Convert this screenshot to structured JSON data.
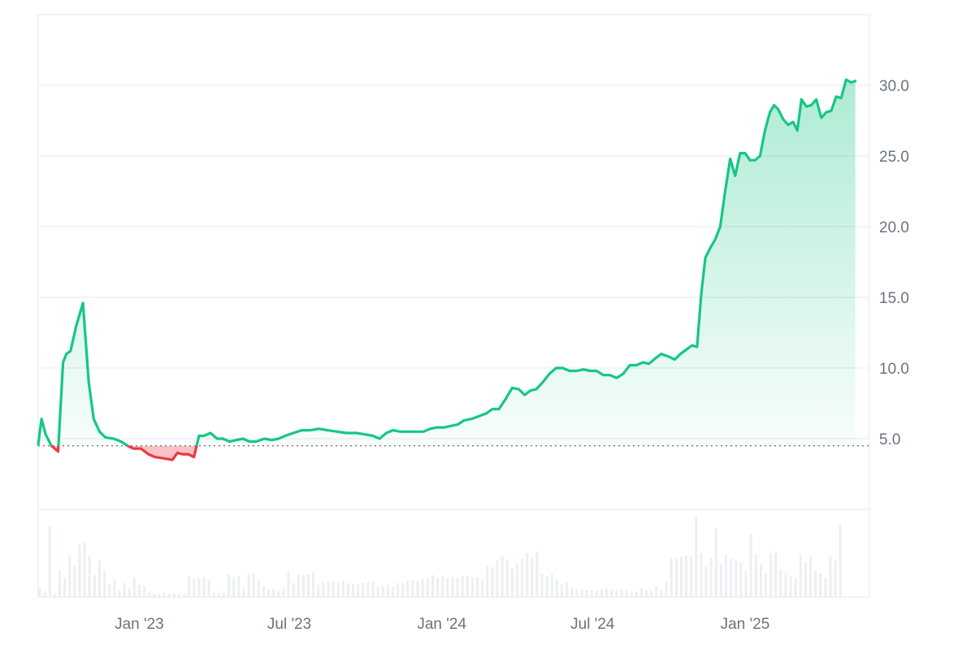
{
  "chart_data": {
    "type": "area",
    "baseline": 4.5,
    "y_axis": {
      "ticks": [
        5.0,
        10.0,
        15.0,
        20.0,
        25.0,
        30.0
      ],
      "tick_labels": [
        "5.0",
        "10.0",
        "15.0",
        "20.0",
        "25.0",
        "30.0"
      ],
      "ylim": [
        0,
        35
      ],
      "position": "right"
    },
    "x_axis": {
      "tick_labels": [
        "Jan '23",
        "Jul '23",
        "Jan '24",
        "Jul '24",
        "Jan '25"
      ],
      "xlim": [
        "2022-09-01",
        "2025-05-31"
      ]
    },
    "grid": true,
    "colors": {
      "up": "#16c784",
      "down": "#ea3943",
      "grid": "#eef0f3",
      "volume": "#eceff3"
    },
    "series": [
      {
        "values": [
          [
            "2022-09-01",
            4.6
          ],
          [
            "2022-09-05",
            6.4
          ],
          [
            "2022-09-10",
            5.3
          ],
          [
            "2022-09-17",
            4.5
          ],
          [
            "2022-09-25",
            4.1
          ],
          [
            "2022-10-01",
            10.4
          ],
          [
            "2022-10-05",
            11.0
          ],
          [
            "2022-10-10",
            11.2
          ],
          [
            "2022-10-17",
            13.0
          ],
          [
            "2022-10-25",
            14.6
          ],
          [
            "2022-11-01",
            9.0
          ],
          [
            "2022-11-07",
            6.4
          ],
          [
            "2022-11-14",
            5.5
          ],
          [
            "2022-11-21",
            5.1
          ],
          [
            "2022-12-01",
            5.0
          ],
          [
            "2022-12-10",
            4.8
          ],
          [
            "2022-12-18",
            4.5
          ],
          [
            "2022-12-25",
            4.3
          ],
          [
            "2023-01-03",
            4.3
          ],
          [
            "2023-01-12",
            3.9
          ],
          [
            "2023-01-20",
            3.7
          ],
          [
            "2023-02-01",
            3.6
          ],
          [
            "2023-02-10",
            3.5
          ],
          [
            "2023-02-16",
            4.0
          ],
          [
            "2023-02-22",
            3.9
          ],
          [
            "2023-03-01",
            3.9
          ],
          [
            "2023-03-08",
            3.7
          ],
          [
            "2023-03-14",
            5.2
          ],
          [
            "2023-03-20",
            5.2
          ],
          [
            "2023-03-28",
            5.4
          ],
          [
            "2023-04-05",
            5.0
          ],
          [
            "2023-04-12",
            5.0
          ],
          [
            "2023-04-20",
            4.8
          ],
          [
            "2023-04-28",
            4.9
          ],
          [
            "2023-05-06",
            5.0
          ],
          [
            "2023-05-14",
            4.8
          ],
          [
            "2023-05-22",
            4.8
          ],
          [
            "2023-06-01",
            5.0
          ],
          [
            "2023-06-10",
            4.9
          ],
          [
            "2023-06-18",
            5.0
          ],
          [
            "2023-06-26",
            5.2
          ],
          [
            "2023-07-06",
            5.4
          ],
          [
            "2023-07-16",
            5.6
          ],
          [
            "2023-07-26",
            5.6
          ],
          [
            "2023-08-06",
            5.7
          ],
          [
            "2023-08-16",
            5.6
          ],
          [
            "2023-08-28",
            5.5
          ],
          [
            "2023-09-08",
            5.4
          ],
          [
            "2023-09-20",
            5.4
          ],
          [
            "2023-10-01",
            5.3
          ],
          [
            "2023-10-10",
            5.2
          ],
          [
            "2023-10-18",
            5.0
          ],
          [
            "2023-10-26",
            5.4
          ],
          [
            "2023-11-03",
            5.6
          ],
          [
            "2023-11-12",
            5.5
          ],
          [
            "2023-11-22",
            5.5
          ],
          [
            "2023-12-01",
            5.5
          ],
          [
            "2023-12-10",
            5.5
          ],
          [
            "2023-12-18",
            5.7
          ],
          [
            "2023-12-26",
            5.8
          ],
          [
            "2024-01-04",
            5.8
          ],
          [
            "2024-01-12",
            5.9
          ],
          [
            "2024-01-20",
            6.0
          ],
          [
            "2024-01-28",
            6.3
          ],
          [
            "2024-02-06",
            6.4
          ],
          [
            "2024-02-15",
            6.6
          ],
          [
            "2024-02-24",
            6.8
          ],
          [
            "2024-03-02",
            7.1
          ],
          [
            "2024-03-10",
            7.1
          ],
          [
            "2024-03-18",
            7.8
          ],
          [
            "2024-03-26",
            8.6
          ],
          [
            "2024-04-03",
            8.5
          ],
          [
            "2024-04-10",
            8.1
          ],
          [
            "2024-04-17",
            8.4
          ],
          [
            "2024-04-24",
            8.5
          ],
          [
            "2024-05-02",
            9.0
          ],
          [
            "2024-05-10",
            9.6
          ],
          [
            "2024-05-18",
            10.0
          ],
          [
            "2024-05-26",
            10.0
          ],
          [
            "2024-06-03",
            9.8
          ],
          [
            "2024-06-12",
            9.8
          ],
          [
            "2024-06-20",
            9.9
          ],
          [
            "2024-06-28",
            9.8
          ],
          [
            "2024-07-06",
            9.8
          ],
          [
            "2024-07-14",
            9.5
          ],
          [
            "2024-07-22",
            9.5
          ],
          [
            "2024-07-30",
            9.3
          ],
          [
            "2024-08-07",
            9.6
          ],
          [
            "2024-08-15",
            10.2
          ],
          [
            "2024-08-23",
            10.2
          ],
          [
            "2024-08-31",
            10.4
          ],
          [
            "2024-09-07",
            10.3
          ],
          [
            "2024-09-15",
            10.7
          ],
          [
            "2024-09-22",
            11.0
          ],
          [
            "2024-10-01",
            10.8
          ],
          [
            "2024-10-08",
            10.6
          ],
          [
            "2024-10-15",
            11.0
          ],
          [
            "2024-10-22",
            11.3
          ],
          [
            "2024-10-29",
            11.6
          ],
          [
            "2024-11-04",
            11.5
          ],
          [
            "2024-11-09",
            15.2
          ],
          [
            "2024-11-14",
            17.8
          ],
          [
            "2024-11-20",
            18.5
          ],
          [
            "2024-11-26",
            19.1
          ],
          [
            "2024-12-02",
            20.0
          ],
          [
            "2024-12-08",
            22.5
          ],
          [
            "2024-12-14",
            24.8
          ],
          [
            "2024-12-20",
            23.6
          ],
          [
            "2024-12-26",
            25.2
          ],
          [
            "2025-01-01",
            25.2
          ],
          [
            "2025-01-07",
            24.7
          ],
          [
            "2025-01-13",
            24.7
          ],
          [
            "2025-01-19",
            25.0
          ],
          [
            "2025-01-25",
            26.8
          ],
          [
            "2025-01-31",
            28.1
          ],
          [
            "2025-02-05",
            28.6
          ],
          [
            "2025-02-10",
            28.3
          ],
          [
            "2025-02-16",
            27.6
          ],
          [
            "2025-02-22",
            27.2
          ],
          [
            "2025-02-28",
            27.4
          ],
          [
            "2025-03-05",
            26.8
          ],
          [
            "2025-03-10",
            29.0
          ],
          [
            "2025-03-16",
            28.5
          ],
          [
            "2025-03-22",
            28.6
          ],
          [
            "2025-03-28",
            29.0
          ],
          [
            "2025-04-03",
            27.7
          ],
          [
            "2025-04-09",
            28.1
          ],
          [
            "2025-04-15",
            28.2
          ],
          [
            "2025-04-21",
            29.2
          ],
          [
            "2025-04-27",
            29.1
          ],
          [
            "2025-05-03",
            30.4
          ],
          [
            "2025-05-09",
            30.2
          ],
          [
            "2025-05-14",
            30.3
          ]
        ]
      }
    ],
    "volume": [
      [
        "2022-09-03",
        0.1
      ],
      [
        "2022-09-09",
        0.07
      ],
      [
        "2022-09-15",
        0.8
      ],
      [
        "2022-09-21",
        0.04
      ],
      [
        "2022-09-27",
        0.3
      ],
      [
        "2022-10-03",
        0.22
      ],
      [
        "2022-10-09",
        0.47
      ],
      [
        "2022-10-15",
        0.35
      ],
      [
        "2022-10-21",
        0.6
      ],
      [
        "2022-10-27",
        0.62
      ],
      [
        "2022-11-02",
        0.47
      ],
      [
        "2022-11-08",
        0.25
      ],
      [
        "2022-11-14",
        0.42
      ],
      [
        "2022-11-20",
        0.3
      ],
      [
        "2022-11-26",
        0.15
      ],
      [
        "2022-12-02",
        0.2
      ],
      [
        "2022-12-08",
        0.08
      ],
      [
        "2022-12-14",
        0.16
      ],
      [
        "2022-12-20",
        0.1
      ],
      [
        "2022-12-26",
        0.22
      ],
      [
        "2023-01-01",
        0.14
      ],
      [
        "2023-01-07",
        0.13
      ],
      [
        "2023-01-13",
        0.05
      ],
      [
        "2023-01-19",
        0.04
      ],
      [
        "2023-01-25",
        0.04
      ],
      [
        "2023-01-31",
        0.05
      ],
      [
        "2023-02-06",
        0.04
      ],
      [
        "2023-02-12",
        0.04
      ],
      [
        "2023-02-18",
        0.04
      ],
      [
        "2023-02-24",
        0.04
      ],
      [
        "2023-03-02",
        0.24
      ],
      [
        "2023-03-08",
        0.21
      ],
      [
        "2023-03-14",
        0.22
      ],
      [
        "2023-03-20",
        0.23
      ],
      [
        "2023-03-26",
        0.2
      ],
      [
        "2023-04-01",
        0.05
      ],
      [
        "2023-04-07",
        0.04
      ],
      [
        "2023-04-13",
        0.05
      ],
      [
        "2023-04-19",
        0.26
      ],
      [
        "2023-04-25",
        0.23
      ],
      [
        "2023-05-01",
        0.24
      ],
      [
        "2023-05-07",
        0.1
      ],
      [
        "2023-05-13",
        0.26
      ],
      [
        "2023-05-19",
        0.27
      ],
      [
        "2023-05-25",
        0.19
      ],
      [
        "2023-05-31",
        0.13
      ],
      [
        "2023-06-06",
        0.09
      ],
      [
        "2023-06-12",
        0.09
      ],
      [
        "2023-06-18",
        0.07
      ],
      [
        "2023-06-24",
        0.1
      ],
      [
        "2023-06-30",
        0.29
      ],
      [
        "2023-07-06",
        0.16
      ],
      [
        "2023-07-12",
        0.26
      ],
      [
        "2023-07-18",
        0.25
      ],
      [
        "2023-07-24",
        0.26
      ],
      [
        "2023-07-30",
        0.29
      ],
      [
        "2023-08-05",
        0.14
      ],
      [
        "2023-08-11",
        0.17
      ],
      [
        "2023-08-17",
        0.18
      ],
      [
        "2023-08-23",
        0.17
      ],
      [
        "2023-08-29",
        0.17
      ],
      [
        "2023-09-04",
        0.18
      ],
      [
        "2023-09-10",
        0.16
      ],
      [
        "2023-09-16",
        0.15
      ],
      [
        "2023-09-22",
        0.15
      ],
      [
        "2023-09-28",
        0.16
      ],
      [
        "2023-10-04",
        0.17
      ],
      [
        "2023-10-10",
        0.18
      ],
      [
        "2023-10-16",
        0.12
      ],
      [
        "2023-10-22",
        0.13
      ],
      [
        "2023-10-28",
        0.14
      ],
      [
        "2023-11-03",
        0.12
      ],
      [
        "2023-11-09",
        0.16
      ],
      [
        "2023-11-15",
        0.16
      ],
      [
        "2023-11-21",
        0.19
      ],
      [
        "2023-11-27",
        0.19
      ],
      [
        "2023-12-03",
        0.18
      ],
      [
        "2023-12-09",
        0.2
      ],
      [
        "2023-12-15",
        0.22
      ],
      [
        "2023-12-21",
        0.25
      ],
      [
        "2023-12-27",
        0.22
      ],
      [
        "2024-01-02",
        0.24
      ],
      [
        "2024-01-08",
        0.22
      ],
      [
        "2024-01-14",
        0.23
      ],
      [
        "2024-01-20",
        0.22
      ],
      [
        "2024-01-26",
        0.24
      ],
      [
        "2024-02-01",
        0.24
      ],
      [
        "2024-02-07",
        0.22
      ],
      [
        "2024-02-13",
        0.23
      ],
      [
        "2024-02-19",
        0.2
      ],
      [
        "2024-02-25",
        0.36
      ],
      [
        "2024-03-02",
        0.34
      ],
      [
        "2024-03-08",
        0.42
      ],
      [
        "2024-03-14",
        0.47
      ],
      [
        "2024-03-20",
        0.43
      ],
      [
        "2024-03-26",
        0.33
      ],
      [
        "2024-04-01",
        0.39
      ],
      [
        "2024-04-07",
        0.44
      ],
      [
        "2024-04-13",
        0.5
      ],
      [
        "2024-04-19",
        0.44
      ],
      [
        "2024-04-25",
        0.52
      ],
      [
        "2024-05-01",
        0.26
      ],
      [
        "2024-05-07",
        0.24
      ],
      [
        "2024-05-13",
        0.26
      ],
      [
        "2024-05-19",
        0.2
      ],
      [
        "2024-05-25",
        0.14
      ],
      [
        "2024-05-31",
        0.17
      ],
      [
        "2024-06-06",
        0.1
      ],
      [
        "2024-06-12",
        0.09
      ],
      [
        "2024-06-18",
        0.09
      ],
      [
        "2024-06-24",
        0.08
      ],
      [
        "2024-06-30",
        0.08
      ],
      [
        "2024-07-06",
        0.07
      ],
      [
        "2024-07-12",
        0.09
      ],
      [
        "2024-07-18",
        0.1
      ],
      [
        "2024-07-24",
        0.08
      ],
      [
        "2024-07-30",
        0.08
      ],
      [
        "2024-08-05",
        0.09
      ],
      [
        "2024-08-11",
        0.08
      ],
      [
        "2024-08-17",
        0.06
      ],
      [
        "2024-08-23",
        0.06
      ],
      [
        "2024-08-29",
        0.1
      ],
      [
        "2024-09-04",
        0.08
      ],
      [
        "2024-09-10",
        0.07
      ],
      [
        "2024-09-16",
        0.12
      ],
      [
        "2024-09-22",
        0.08
      ],
      [
        "2024-09-28",
        0.18
      ],
      [
        "2024-10-04",
        0.45
      ],
      [
        "2024-10-10",
        0.44
      ],
      [
        "2024-10-16",
        0.46
      ],
      [
        "2024-10-22",
        0.47
      ],
      [
        "2024-10-28",
        0.46
      ],
      [
        "2024-11-03",
        0.92
      ],
      [
        "2024-11-09",
        0.5
      ],
      [
        "2024-11-15",
        0.35
      ],
      [
        "2024-11-21",
        0.45
      ],
      [
        "2024-11-27",
        0.78
      ],
      [
        "2024-12-03",
        0.38
      ],
      [
        "2024-12-09",
        0.48
      ],
      [
        "2024-12-15",
        0.44
      ],
      [
        "2024-12-21",
        0.42
      ],
      [
        "2024-12-27",
        0.4
      ],
      [
        "2025-01-02",
        0.3
      ],
      [
        "2025-01-08",
        0.72
      ],
      [
        "2025-01-14",
        0.48
      ],
      [
        "2025-01-20",
        0.38
      ],
      [
        "2025-01-26",
        0.27
      ],
      [
        "2025-02-01",
        0.5
      ],
      [
        "2025-02-07",
        0.52
      ],
      [
        "2025-02-13",
        0.32
      ],
      [
        "2025-02-19",
        0.28
      ],
      [
        "2025-02-25",
        0.24
      ],
      [
        "2025-03-03",
        0.21
      ],
      [
        "2025-03-09",
        0.48
      ],
      [
        "2025-03-15",
        0.4
      ],
      [
        "2025-03-21",
        0.46
      ],
      [
        "2025-03-27",
        0.3
      ],
      [
        "2025-04-02",
        0.27
      ],
      [
        "2025-04-08",
        0.22
      ],
      [
        "2025-04-14",
        0.46
      ],
      [
        "2025-04-20",
        0.42
      ],
      [
        "2025-04-26",
        0.83
      ]
    ]
  }
}
